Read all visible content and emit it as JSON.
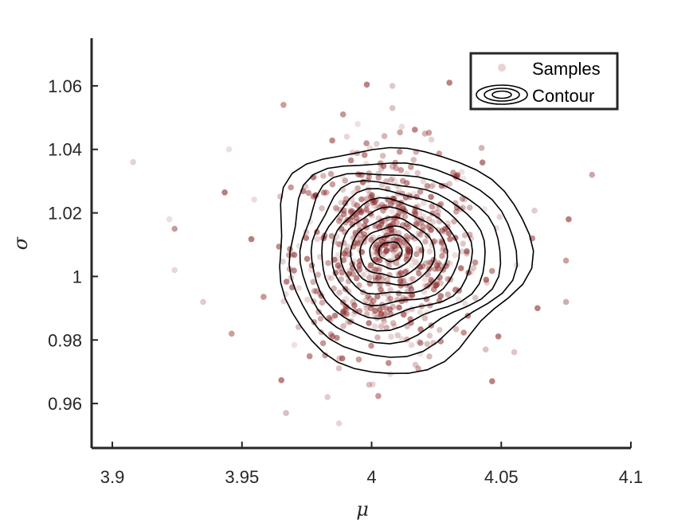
{
  "chart_data": {
    "type": "scatter",
    "title": "",
    "xlabel": "μ",
    "ylabel": "σ",
    "xlim": [
      3.892,
      4.1
    ],
    "ylim": [
      0.946,
      1.075
    ],
    "xticks": [
      3.9,
      3.95,
      4,
      4.05,
      4.1
    ],
    "xtick_labels": [
      "3.9",
      "3.95",
      "4",
      "4.05",
      "4.1"
    ],
    "yticks": [
      0.96,
      0.98,
      1,
      1.02,
      1.04,
      1.06
    ],
    "ytick_labels": [
      "0.96",
      "0.98",
      "1",
      "1.02",
      "1.04",
      "1.06"
    ],
    "grid": false,
    "legend": {
      "placement": "top-right",
      "entries": [
        "Samples",
        "Contour"
      ]
    },
    "colors": {
      "samples": "#8b2a2a",
      "contour": "#000000",
      "axis": "#262626"
    },
    "series": [
      {
        "name": "Samples",
        "kind": "scatter",
        "center": [
          4.006,
          1.008
        ],
        "spread": [
          0.018,
          0.016
        ],
        "count": 700,
        "outliers": [
          [
            3.908,
            1.036
          ],
          [
            3.922,
            1.018
          ],
          [
            3.924,
            1.015
          ],
          [
            3.924,
            1.002
          ],
          [
            3.945,
            1.04
          ],
          [
            3.946,
            0.982
          ],
          [
            3.935,
            0.992
          ],
          [
            3.966,
            1.054
          ],
          [
            3.967,
            0.957
          ],
          [
            3.983,
            0.962
          ],
          [
            4.008,
            1.06
          ],
          [
            4.03,
            1.061
          ],
          [
            4.085,
            1.032
          ],
          [
            4.076,
            1.018
          ],
          [
            4.075,
            1.005
          ],
          [
            4.075,
            0.992
          ],
          [
            4.064,
            0.99
          ],
          [
            4.062,
            1.012
          ],
          [
            4.044,
            0.977
          ],
          [
            4.018,
            0.971
          ],
          [
            3.989,
            1.051
          ],
          [
            4.008,
            1.053
          ]
        ]
      },
      {
        "name": "Contour",
        "kind": "contour",
        "center": [
          4.007,
          1.008
        ],
        "levels": [
          {
            "rx": 0.0485,
            "ry": 0.0355
          },
          {
            "rx": 0.0435,
            "ry": 0.0305
          },
          {
            "rx": 0.0385,
            "ry": 0.0265
          },
          {
            "rx": 0.0335,
            "ry": 0.023
          },
          {
            "rx": 0.029,
            "ry": 0.0198
          },
          {
            "rx": 0.0245,
            "ry": 0.0165
          },
          {
            "rx": 0.0205,
            "ry": 0.0135
          },
          {
            "rx": 0.0162,
            "ry": 0.0105
          },
          {
            "rx": 0.0122,
            "ry": 0.0078
          },
          {
            "rx": 0.0082,
            "ry": 0.0052
          },
          {
            "rx": 0.0045,
            "ry": 0.003
          }
        ]
      }
    ]
  }
}
